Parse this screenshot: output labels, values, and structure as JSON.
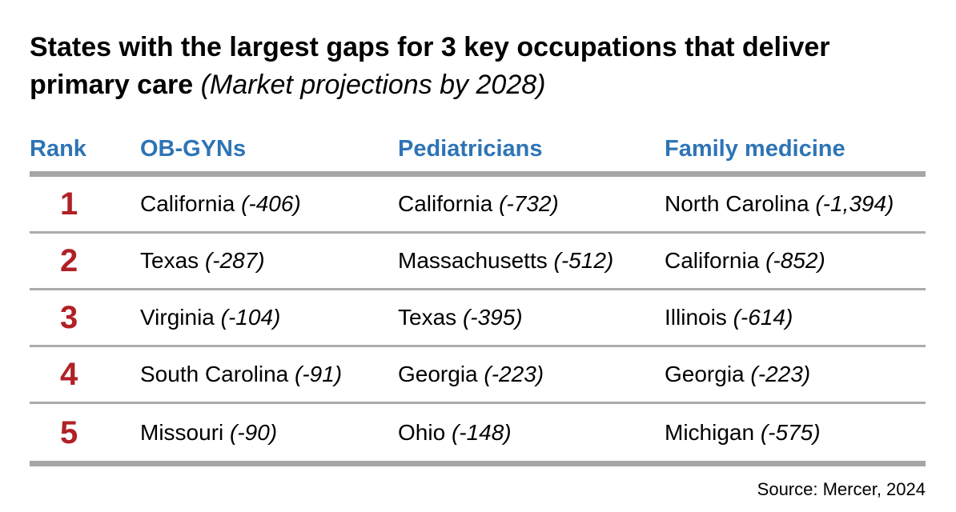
{
  "title": {
    "text": "States with the largest gaps for 3 key occupations that deliver primary care",
    "note": "(Market projections by 2028)"
  },
  "colors": {
    "header_blue": "#2E74B5",
    "rank_red": "#B02126",
    "rule_gray": "#A6A6A6",
    "row_line_gray": "#ABABAB"
  },
  "table": {
    "columns": [
      "Rank",
      "OB-GYNs",
      "Pediatricians",
      "Family medicine"
    ],
    "rows": [
      {
        "rank": "1",
        "cells": [
          {
            "state": "California",
            "gap": "(-406)"
          },
          {
            "state": "California",
            "gap": "(-732)"
          },
          {
            "state": "North Carolina",
            "gap": "(-1,394)"
          }
        ]
      },
      {
        "rank": "2",
        "cells": [
          {
            "state": "Texas",
            "gap": "(-287)"
          },
          {
            "state": "Massachusetts",
            "gap": "(-512)"
          },
          {
            "state": "California",
            "gap": "(-852)"
          }
        ]
      },
      {
        "rank": "3",
        "cells": [
          {
            "state": "Virginia",
            "gap": "(-104)"
          },
          {
            "state": "Texas",
            "gap": "(-395)"
          },
          {
            "state": "Illinois",
            "gap": "(-614)"
          }
        ]
      },
      {
        "rank": "4",
        "cells": [
          {
            "state": "South Carolina",
            "gap": "(-91)"
          },
          {
            "state": "Georgia",
            "gap": "(-223)"
          },
          {
            "state": "Georgia",
            "gap": "(-223)"
          }
        ]
      },
      {
        "rank": "5",
        "cells": [
          {
            "state": "Missouri",
            "gap": "(-90)"
          },
          {
            "state": "Ohio",
            "gap": "(-148)"
          },
          {
            "state": "Michigan",
            "gap": "(-575)"
          }
        ]
      }
    ]
  },
  "source": "Source: Mercer, 2024",
  "chart_data": {
    "type": "table",
    "title": "States with the largest gaps for 3 key occupations that deliver primary care",
    "subtitle": "(Market projections by 2028)",
    "columns": [
      "Rank",
      "OB-GYNs",
      "Pediatricians",
      "Family medicine"
    ],
    "rows": [
      [
        1,
        "California (-406)",
        "California (-732)",
        "North Carolina (-1,394)"
      ],
      [
        2,
        "Texas (-287)",
        "Massachusetts (-512)",
        "California (-852)"
      ],
      [
        3,
        "Virginia (-104)",
        "Texas (-395)",
        "Illinois (-614)"
      ],
      [
        4,
        "South Carolina (-91)",
        "Georgia (-223)",
        "Georgia (-223)"
      ],
      [
        5,
        "Missouri (-90)",
        "Ohio (-148)",
        "Michigan (-575)"
      ]
    ],
    "series": [
      {
        "name": "OB-GYNs",
        "states": [
          "California",
          "Texas",
          "Virginia",
          "South Carolina",
          "Missouri"
        ],
        "values": [
          -406,
          -287,
          -104,
          -91,
          -90
        ]
      },
      {
        "name": "Pediatricians",
        "states": [
          "California",
          "Massachusetts",
          "Texas",
          "Georgia",
          "Ohio"
        ],
        "values": [
          -732,
          -512,
          -395,
          -223,
          -148
        ]
      },
      {
        "name": "Family medicine",
        "states": [
          "North Carolina",
          "California",
          "Illinois",
          "Georgia",
          "Michigan"
        ],
        "values": [
          -1394,
          -852,
          -614,
          -223,
          -575
        ]
      }
    ],
    "source": "Source: Mercer, 2024"
  }
}
